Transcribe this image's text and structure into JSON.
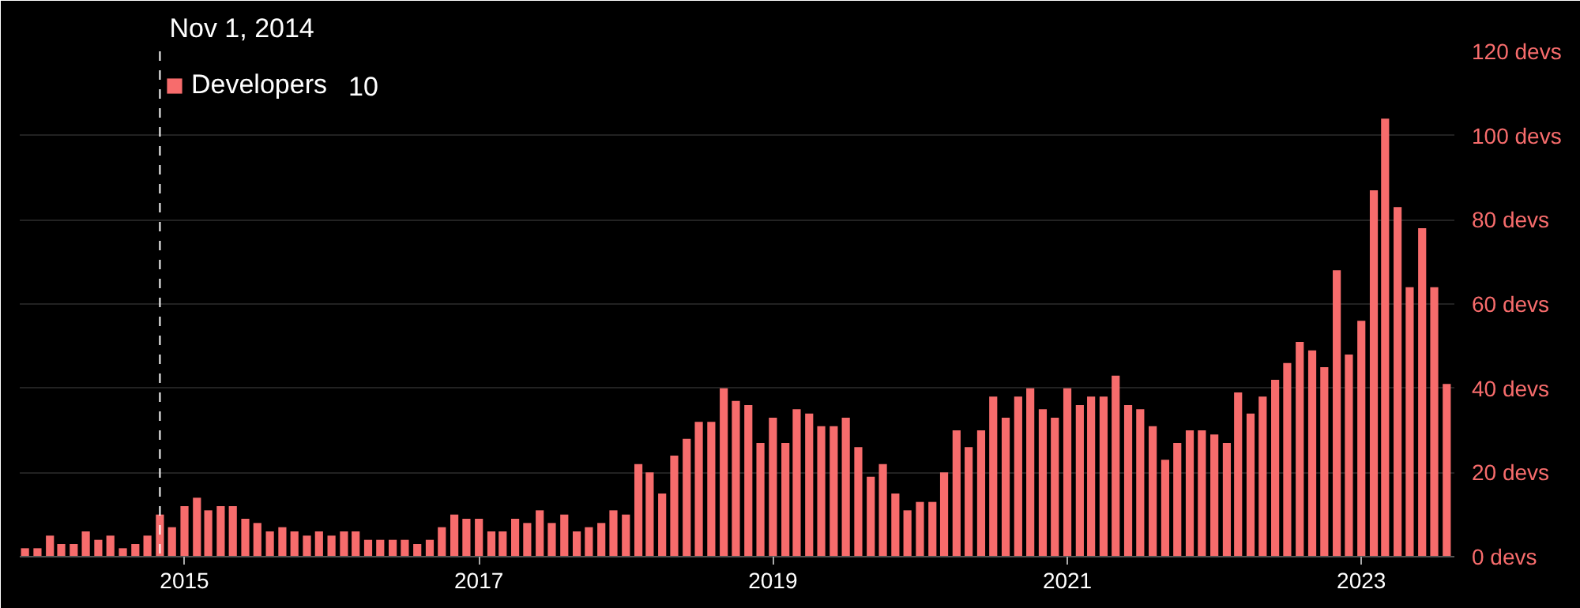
{
  "chart_data": {
    "type": "bar",
    "x": [
      "2013-12",
      "2014-01",
      "2014-02",
      "2014-03",
      "2014-04",
      "2014-05",
      "2014-06",
      "2014-07",
      "2014-08",
      "2014-09",
      "2014-10",
      "2014-11",
      "2014-12",
      "2015-01",
      "2015-02",
      "2015-03",
      "2015-04",
      "2015-05",
      "2015-06",
      "2015-07",
      "2015-08",
      "2015-09",
      "2015-10",
      "2015-11",
      "2015-12",
      "2016-01",
      "2016-02",
      "2016-03",
      "2016-04",
      "2016-05",
      "2016-06",
      "2016-07",
      "2016-08",
      "2016-09",
      "2016-10",
      "2016-11",
      "2016-12",
      "2017-01",
      "2017-02",
      "2017-03",
      "2017-04",
      "2017-05",
      "2017-06",
      "2017-07",
      "2017-08",
      "2017-09",
      "2017-10",
      "2017-11",
      "2017-12",
      "2018-01",
      "2018-02",
      "2018-03",
      "2018-04",
      "2018-05",
      "2018-06",
      "2018-07",
      "2018-08",
      "2018-09",
      "2018-10",
      "2018-11",
      "2018-12",
      "2019-01",
      "2019-02",
      "2019-03",
      "2019-04",
      "2019-05",
      "2019-06",
      "2019-07",
      "2019-08",
      "2019-09",
      "2019-10",
      "2019-11",
      "2019-12",
      "2020-01",
      "2020-02",
      "2020-03",
      "2020-04",
      "2020-05",
      "2020-06",
      "2020-07",
      "2020-08",
      "2020-09",
      "2020-10",
      "2020-11",
      "2020-12",
      "2021-01",
      "2021-02",
      "2021-03",
      "2021-04",
      "2021-05",
      "2021-06",
      "2021-07",
      "2021-08",
      "2021-09",
      "2021-10",
      "2021-11",
      "2021-12",
      "2022-01",
      "2022-02",
      "2022-03",
      "2022-04",
      "2022-05",
      "2022-06",
      "2022-07",
      "2022-08",
      "2022-09",
      "2022-10",
      "2022-11",
      "2022-12",
      "2023-01",
      "2023-02",
      "2023-03",
      "2023-04",
      "2023-05",
      "2023-06",
      "2023-07",
      "2023-08"
    ],
    "series": [
      {
        "name": "Developers",
        "color": "#f76c6c",
        "values": [
          2,
          2,
          5,
          3,
          3,
          6,
          4,
          5,
          2,
          3,
          5,
          10,
          7,
          12,
          14,
          11,
          12,
          12,
          9,
          8,
          6,
          7,
          6,
          5,
          6,
          5,
          6,
          6,
          4,
          4,
          4,
          4,
          3,
          4,
          7,
          10,
          9,
          9,
          6,
          6,
          9,
          8,
          11,
          8,
          10,
          6,
          7,
          8,
          11,
          10,
          22,
          20,
          15,
          24,
          28,
          32,
          32,
          40,
          37,
          36,
          27,
          33,
          27,
          35,
          34,
          31,
          31,
          33,
          26,
          19,
          22,
          15,
          11,
          13,
          13,
          20,
          30,
          26,
          30,
          38,
          33,
          38,
          40,
          35,
          33,
          40,
          36,
          38,
          38,
          43,
          36,
          35,
          31,
          23,
          27,
          30,
          30,
          29,
          27,
          39,
          34,
          38,
          42,
          46,
          51,
          49,
          45,
          68,
          48,
          56,
          87,
          104,
          83,
          64,
          78,
          64,
          41
        ]
      }
    ],
    "xlim": [
      "2013-11-18",
      "2023-08-20"
    ],
    "xticks": [
      {
        "value": "2015-01-01",
        "label": "2015"
      },
      {
        "value": "2017-01-01",
        "label": "2017"
      },
      {
        "value": "2019-01-01",
        "label": "2019"
      },
      {
        "value": "2021-01-01",
        "label": "2021"
      },
      {
        "value": "2023-01-01",
        "label": "2023"
      }
    ],
    "ylim": [
      0,
      120
    ],
    "yticks": [
      {
        "value": 0,
        "label": "0 devs"
      },
      {
        "value": 20,
        "label": "20 devs"
      },
      {
        "value": 40,
        "label": "40 devs"
      },
      {
        "value": 60,
        "label": "60 devs"
      },
      {
        "value": 80,
        "label": "80 devs"
      },
      {
        "value": 100,
        "label": "100 devs"
      },
      {
        "value": 120,
        "label": "120 devs"
      }
    ],
    "grid": "y",
    "legend": "top left",
    "ref_lines": [
      {
        "axis": "x",
        "value": "2014-11-01",
        "label": "Nov 1, 2014",
        "color": "#ffffff",
        "line_style": "dashed"
      }
    ],
    "annotations": [
      "10"
    ]
  }
}
